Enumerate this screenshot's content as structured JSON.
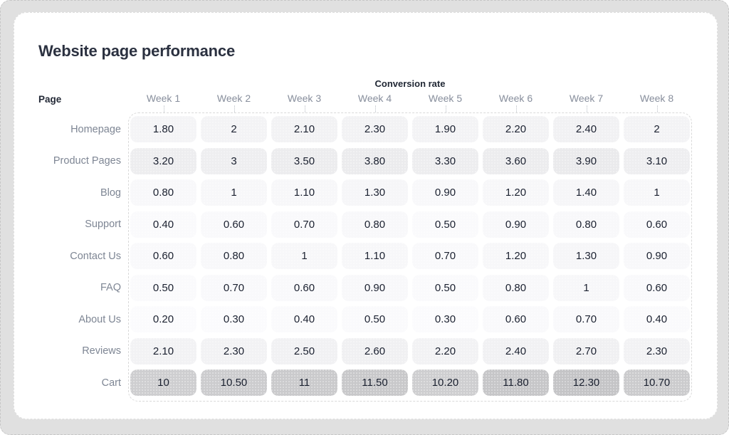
{
  "title": "Website page performance",
  "table": {
    "group_header": "Conversion rate",
    "page_header": "Page",
    "columns": [
      "Week 1",
      "Week 2",
      "Week 3",
      "Week 4",
      "Week 5",
      "Week 6",
      "Week 7",
      "Week 8"
    ],
    "rows": [
      {
        "label": "Homepage",
        "values": [
          "1.80",
          "2",
          "2.10",
          "2.30",
          "1.90",
          "2.20",
          "2.40",
          "2"
        ]
      },
      {
        "label": "Product Pages",
        "values": [
          "3.20",
          "3",
          "3.50",
          "3.80",
          "3.30",
          "3.60",
          "3.90",
          "3.10"
        ]
      },
      {
        "label": "Blog",
        "values": [
          "0.80",
          "1",
          "1.10",
          "1.30",
          "0.90",
          "1.20",
          "1.40",
          "1"
        ]
      },
      {
        "label": "Support",
        "values": [
          "0.40",
          "0.60",
          "0.70",
          "0.80",
          "0.50",
          "0.90",
          "0.80",
          "0.60"
        ]
      },
      {
        "label": "Contact Us",
        "values": [
          "0.60",
          "0.80",
          "1",
          "1.10",
          "0.70",
          "1.20",
          "1.30",
          "0.90"
        ]
      },
      {
        "label": "FAQ",
        "values": [
          "0.50",
          "0.70",
          "0.60",
          "0.90",
          "0.50",
          "0.80",
          "1",
          "0.60"
        ]
      },
      {
        "label": "About Us",
        "values": [
          "0.20",
          "0.30",
          "0.40",
          "0.50",
          "0.30",
          "0.60",
          "0.70",
          "0.40"
        ]
      },
      {
        "label": "Reviews",
        "values": [
          "2.10",
          "2.30",
          "2.50",
          "2.60",
          "2.20",
          "2.40",
          "2.70",
          "2.30"
        ]
      },
      {
        "label": "Cart",
        "values": [
          "10",
          "10.50",
          "11",
          "11.50",
          "10.20",
          "11.80",
          "12.30",
          "10.70"
        ]
      }
    ]
  },
  "chart_data": {
    "type": "heatmap",
    "title": "Website page performance",
    "group_label": "Conversion rate",
    "x_labels": [
      "Week 1",
      "Week 2",
      "Week 3",
      "Week 4",
      "Week 5",
      "Week 6",
      "Week 7",
      "Week 8"
    ],
    "y_labels": [
      "Homepage",
      "Product Pages",
      "Blog",
      "Support",
      "Contact Us",
      "FAQ",
      "About Us",
      "Reviews",
      "Cart"
    ],
    "values": [
      [
        1.8,
        2,
        2.1,
        2.3,
        1.9,
        2.2,
        2.4,
        2
      ],
      [
        3.2,
        3,
        3.5,
        3.8,
        3.3,
        3.6,
        3.9,
        3.1
      ],
      [
        0.8,
        1,
        1.1,
        1.3,
        0.9,
        1.2,
        1.4,
        1
      ],
      [
        0.4,
        0.6,
        0.7,
        0.8,
        0.5,
        0.9,
        0.8,
        0.6
      ],
      [
        0.6,
        0.8,
        1,
        1.1,
        0.7,
        1.2,
        1.3,
        0.9
      ],
      [
        0.5,
        0.7,
        0.6,
        0.9,
        0.5,
        0.8,
        1,
        0.6
      ],
      [
        0.2,
        0.3,
        0.4,
        0.5,
        0.3,
        0.6,
        0.7,
        0.4
      ],
      [
        2.1,
        2.3,
        2.5,
        2.6,
        2.2,
        2.4,
        2.7,
        2.3
      ],
      [
        10,
        10.5,
        11,
        11.5,
        10.2,
        11.8,
        12.3,
        10.7
      ]
    ],
    "value_range": [
      0,
      12.3
    ],
    "legend": "none",
    "grid": "dashed-outline"
  },
  "colors": {
    "heat_low": "#fcfcfe",
    "heat_high": "#c4c4c6",
    "cell_text": "#1b2130",
    "title_text": "#2b3140",
    "header_text": "#1f2633",
    "muted_text": "#7e8694",
    "card_bg": "#ffffff",
    "frame_bg": "#e0e0e0",
    "dash_border": "#d9d9d9"
  }
}
